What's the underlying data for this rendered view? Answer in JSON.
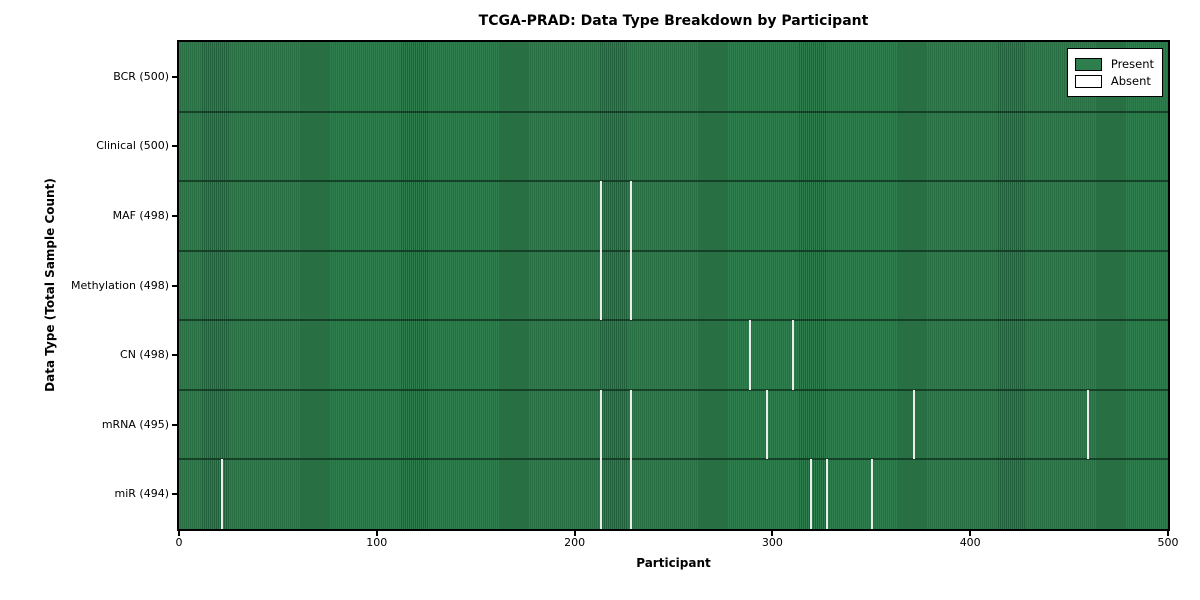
{
  "figure": {
    "title": "TCGA-PRAD: Data Type Breakdown by Participant",
    "xlabel": "Participant",
    "ylabel": "Data Type (Total Sample Count)"
  },
  "legend": {
    "items": [
      {
        "label": "Present",
        "color": "#2f7e4e"
      },
      {
        "label": "Absent",
        "color": "#ffffff"
      }
    ]
  },
  "chart_data": {
    "type": "heatmap",
    "title": "TCGA-PRAD: Data Type Breakdown by Participant",
    "xlabel": "Participant",
    "ylabel": "Data Type (Total Sample Count)",
    "xlim": [
      0,
      500
    ],
    "x_ticks": [
      0,
      100,
      200,
      300,
      400,
      500
    ],
    "n_participants": 500,
    "grid": false,
    "legend_position": "upper right",
    "present_color": "#2f7e4e",
    "absent_color": "#ffffff",
    "rows": [
      {
        "label": "BCR (500)",
        "data_type": "BCR",
        "total": 500,
        "absent_participants": []
      },
      {
        "label": "Clinical (500)",
        "data_type": "Clinical",
        "total": 500,
        "absent_participants": []
      },
      {
        "label": "MAF (498)",
        "data_type": "MAF",
        "total": 498,
        "absent_participants": [
          213,
          228
        ]
      },
      {
        "label": "Methylation (498)",
        "data_type": "Methylation",
        "total": 498,
        "absent_participants": [
          213,
          228
        ]
      },
      {
        "label": "CN (498)",
        "data_type": "CN",
        "total": 498,
        "absent_participants": [
          288,
          310
        ]
      },
      {
        "label": "mRNA (495)",
        "data_type": "mRNA",
        "total": 495,
        "absent_participants": [
          213,
          228,
          297,
          371,
          459
        ]
      },
      {
        "label": "miR (494)",
        "data_type": "miR",
        "total": 494,
        "absent_participants": [
          21,
          213,
          228,
          319,
          327,
          350
        ]
      }
    ]
  }
}
